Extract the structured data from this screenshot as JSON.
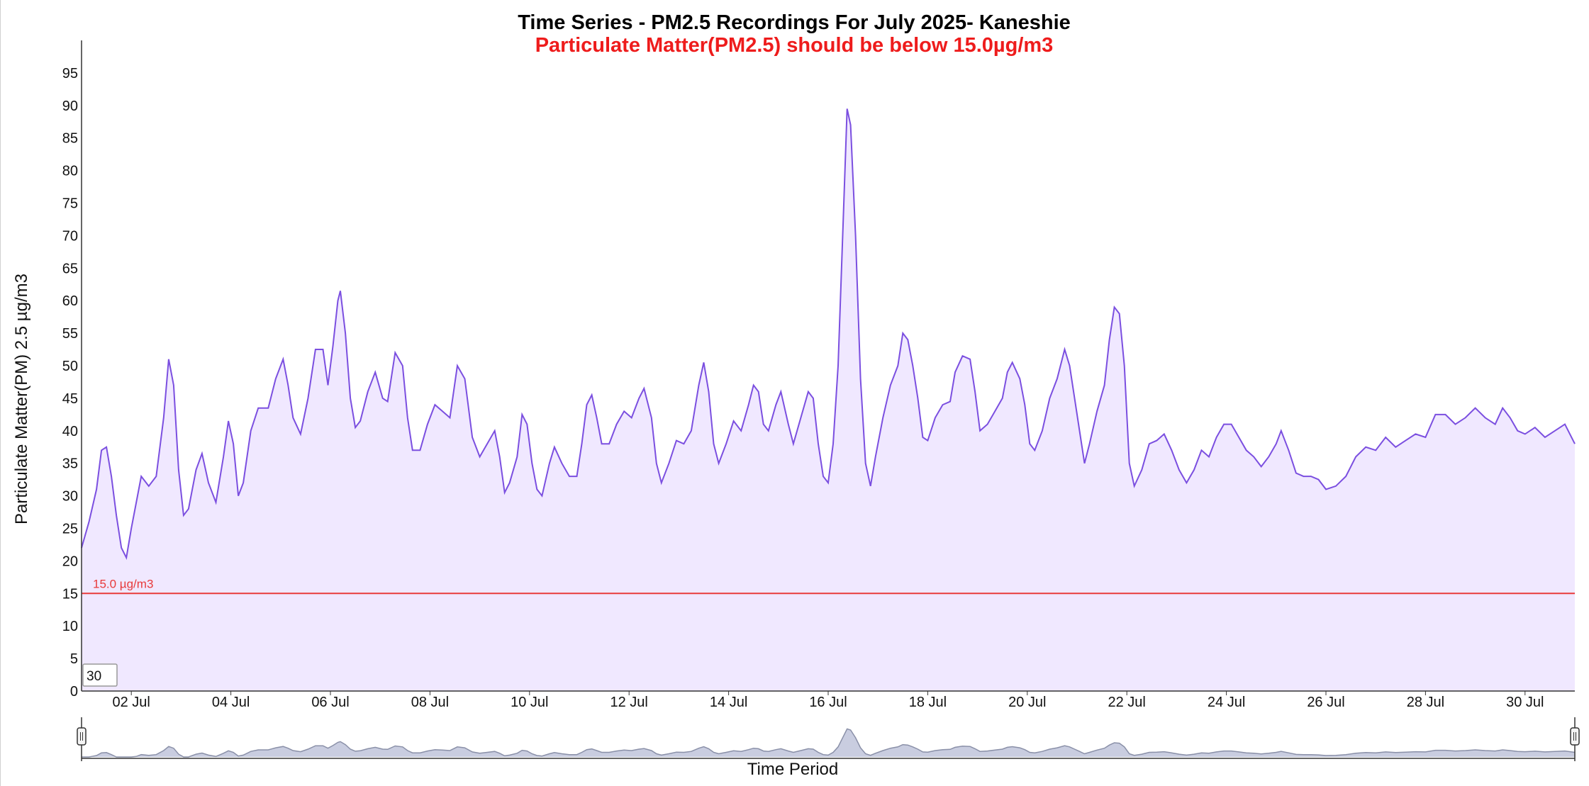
{
  "chart_data": {
    "type": "area",
    "title": "Time Series - PM2.5 Recordings For July 2025- Kaneshie",
    "subtitle": "Particulate Matter(PM2.5) should be below 15.0µg/m3",
    "xlabel": "Time Period",
    "ylabel": "Particulate Matter(PM) 2.5 µg/m3",
    "ylim": [
      0,
      100
    ],
    "xlim": [
      1.0,
      31.0
    ],
    "y_ticks": [
      0,
      5,
      10,
      15,
      20,
      25,
      30,
      35,
      40,
      45,
      50,
      55,
      60,
      65,
      70,
      75,
      80,
      85,
      90,
      95
    ],
    "x_ticks": [
      {
        "day": 2,
        "label": "02 Jul"
      },
      {
        "day": 4,
        "label": "04 Jul"
      },
      {
        "day": 6,
        "label": "06 Jul"
      },
      {
        "day": 8,
        "label": "08 Jul"
      },
      {
        "day": 10,
        "label": "10 Jul"
      },
      {
        "day": 12,
        "label": "12 Jul"
      },
      {
        "day": 14,
        "label": "14 Jul"
      },
      {
        "day": 16,
        "label": "16 Jul"
      },
      {
        "day": 18,
        "label": "18 Jul"
      },
      {
        "day": 20,
        "label": "20 Jul"
      },
      {
        "day": 22,
        "label": "22 Jul"
      },
      {
        "day": 24,
        "label": "24 Jul"
      },
      {
        "day": 26,
        "label": "26 Jul"
      },
      {
        "day": 28,
        "label": "28 Jul"
      },
      {
        "day": 30,
        "label": "30 Jul"
      }
    ],
    "threshold": {
      "value": 15.0,
      "label": "15.0 µg/m3",
      "color": "#e83a3a"
    },
    "series_color": "#7b4fe0",
    "fill_color": "#f0e8ff",
    "grid": false,
    "series": [
      {
        "points": [
          [
            1.0,
            22
          ],
          [
            1.15,
            26
          ],
          [
            1.3,
            31
          ],
          [
            1.4,
            37
          ],
          [
            1.5,
            37.5
          ],
          [
            1.6,
            33
          ],
          [
            1.7,
            27
          ],
          [
            1.8,
            22
          ],
          [
            1.9,
            20.5
          ],
          [
            2.0,
            25
          ],
          [
            2.1,
            29
          ],
          [
            2.2,
            33
          ],
          [
            2.35,
            31.5
          ],
          [
            2.5,
            33
          ],
          [
            2.65,
            42
          ],
          [
            2.75,
            51
          ],
          [
            2.85,
            47
          ],
          [
            2.95,
            34
          ],
          [
            3.05,
            27
          ],
          [
            3.15,
            28
          ],
          [
            3.3,
            34
          ],
          [
            3.42,
            36.5
          ],
          [
            3.55,
            32
          ],
          [
            3.7,
            29
          ],
          [
            3.85,
            36
          ],
          [
            3.95,
            41.5
          ],
          [
            4.05,
            38
          ],
          [
            4.15,
            30
          ],
          [
            4.25,
            32
          ],
          [
            4.4,
            40
          ],
          [
            4.55,
            43.5
          ],
          [
            4.75,
            43.5
          ],
          [
            4.9,
            48
          ],
          [
            5.05,
            51
          ],
          [
            5.15,
            47
          ],
          [
            5.25,
            42
          ],
          [
            5.4,
            39.5
          ],
          [
            5.55,
            45
          ],
          [
            5.7,
            52.5
          ],
          [
            5.85,
            52.5
          ],
          [
            5.95,
            47
          ],
          [
            6.05,
            53
          ],
          [
            6.15,
            60
          ],
          [
            6.2,
            61.5
          ],
          [
            6.3,
            55
          ],
          [
            6.4,
            45
          ],
          [
            6.5,
            40.5
          ],
          [
            6.6,
            41.5
          ],
          [
            6.75,
            46
          ],
          [
            6.9,
            49
          ],
          [
            7.05,
            45
          ],
          [
            7.15,
            44.5
          ],
          [
            7.3,
            52
          ],
          [
            7.45,
            50
          ],
          [
            7.55,
            42
          ],
          [
            7.65,
            37
          ],
          [
            7.8,
            37
          ],
          [
            7.95,
            41
          ],
          [
            8.1,
            44
          ],
          [
            8.25,
            43
          ],
          [
            8.4,
            42
          ],
          [
            8.55,
            50
          ],
          [
            8.7,
            48
          ],
          [
            8.85,
            39
          ],
          [
            9.0,
            36
          ],
          [
            9.15,
            38
          ],
          [
            9.3,
            40
          ],
          [
            9.4,
            36
          ],
          [
            9.5,
            30.5
          ],
          [
            9.6,
            32
          ],
          [
            9.75,
            36
          ],
          [
            9.85,
            42.5
          ],
          [
            9.95,
            41
          ],
          [
            10.05,
            35
          ],
          [
            10.15,
            31
          ],
          [
            10.25,
            30
          ],
          [
            10.4,
            35
          ],
          [
            10.5,
            37.5
          ],
          [
            10.65,
            35
          ],
          [
            10.8,
            33
          ],
          [
            10.95,
            33
          ],
          [
            11.05,
            38
          ],
          [
            11.15,
            44
          ],
          [
            11.25,
            45.5
          ],
          [
            11.35,
            42
          ],
          [
            11.45,
            38
          ],
          [
            11.6,
            38
          ],
          [
            11.75,
            41
          ],
          [
            11.9,
            43
          ],
          [
            12.05,
            42
          ],
          [
            12.2,
            45
          ],
          [
            12.3,
            46.5
          ],
          [
            12.45,
            42
          ],
          [
            12.55,
            35
          ],
          [
            12.65,
            32
          ],
          [
            12.8,
            35
          ],
          [
            12.95,
            38.5
          ],
          [
            13.1,
            38
          ],
          [
            13.25,
            40
          ],
          [
            13.4,
            47
          ],
          [
            13.5,
            50.5
          ],
          [
            13.6,
            46
          ],
          [
            13.7,
            38
          ],
          [
            13.8,
            35
          ],
          [
            13.95,
            38
          ],
          [
            14.1,
            41.5
          ],
          [
            14.25,
            40
          ],
          [
            14.4,
            44
          ],
          [
            14.5,
            47
          ],
          [
            14.6,
            46
          ],
          [
            14.7,
            41
          ],
          [
            14.8,
            40
          ],
          [
            14.95,
            44
          ],
          [
            15.05,
            46
          ],
          [
            15.2,
            41
          ],
          [
            15.3,
            38
          ],
          [
            15.45,
            42
          ],
          [
            15.6,
            46
          ],
          [
            15.7,
            45
          ],
          [
            15.8,
            38
          ],
          [
            15.9,
            33
          ],
          [
            16.0,
            32
          ],
          [
            16.1,
            38
          ],
          [
            16.2,
            50
          ],
          [
            16.3,
            72
          ],
          [
            16.38,
            89.5
          ],
          [
            16.45,
            87
          ],
          [
            16.55,
            70
          ],
          [
            16.65,
            48
          ],
          [
            16.75,
            35
          ],
          [
            16.85,
            31.5
          ],
          [
            16.95,
            36
          ],
          [
            17.1,
            42
          ],
          [
            17.25,
            47
          ],
          [
            17.4,
            50
          ],
          [
            17.5,
            55
          ],
          [
            17.6,
            54
          ],
          [
            17.7,
            50
          ],
          [
            17.8,
            45
          ],
          [
            17.9,
            39
          ],
          [
            18.0,
            38.5
          ],
          [
            18.15,
            42
          ],
          [
            18.3,
            44
          ],
          [
            18.45,
            44.5
          ],
          [
            18.55,
            49
          ],
          [
            18.7,
            51.5
          ],
          [
            18.85,
            51
          ],
          [
            18.95,
            46
          ],
          [
            19.05,
            40
          ],
          [
            19.2,
            41
          ],
          [
            19.35,
            43
          ],
          [
            19.5,
            45
          ],
          [
            19.6,
            49
          ],
          [
            19.7,
            50.5
          ],
          [
            19.85,
            48
          ],
          [
            19.95,
            44
          ],
          [
            20.05,
            38
          ],
          [
            20.15,
            37
          ],
          [
            20.3,
            40
          ],
          [
            20.45,
            45
          ],
          [
            20.6,
            48
          ],
          [
            20.75,
            52.5
          ],
          [
            20.85,
            50
          ],
          [
            20.95,
            45
          ],
          [
            21.05,
            40
          ],
          [
            21.15,
            35
          ],
          [
            21.25,
            38
          ],
          [
            21.4,
            43
          ],
          [
            21.55,
            47
          ],
          [
            21.65,
            54
          ],
          [
            21.75,
            59
          ],
          [
            21.85,
            58
          ],
          [
            21.95,
            50
          ],
          [
            22.05,
            35
          ],
          [
            22.15,
            31.5
          ],
          [
            22.3,
            34
          ],
          [
            22.45,
            38
          ],
          [
            22.6,
            38.5
          ],
          [
            22.75,
            39.5
          ],
          [
            22.9,
            37
          ],
          [
            23.05,
            34
          ],
          [
            23.2,
            32
          ],
          [
            23.35,
            34
          ],
          [
            23.5,
            37
          ],
          [
            23.65,
            36
          ],
          [
            23.8,
            39
          ],
          [
            23.95,
            41
          ],
          [
            24.1,
            41
          ],
          [
            24.25,
            39
          ],
          [
            24.4,
            37
          ],
          [
            24.55,
            36
          ],
          [
            24.7,
            34.5
          ],
          [
            24.85,
            36
          ],
          [
            25.0,
            38
          ],
          [
            25.1,
            40
          ],
          [
            25.25,
            37
          ],
          [
            25.4,
            33.5
          ],
          [
            25.55,
            33
          ],
          [
            25.7,
            33
          ],
          [
            25.85,
            32.5
          ],
          [
            26.0,
            31
          ],
          [
            26.2,
            31.5
          ],
          [
            26.4,
            33
          ],
          [
            26.6,
            36
          ],
          [
            26.8,
            37.5
          ],
          [
            27.0,
            37
          ],
          [
            27.2,
            39
          ],
          [
            27.4,
            37.5
          ],
          [
            27.6,
            38.5
          ],
          [
            27.8,
            39.5
          ],
          [
            28.0,
            39
          ],
          [
            28.2,
            42.5
          ],
          [
            28.4,
            42.5
          ],
          [
            28.6,
            41
          ],
          [
            28.8,
            42
          ],
          [
            29.0,
            43.5
          ],
          [
            29.2,
            42
          ],
          [
            29.4,
            41
          ],
          [
            29.55,
            43.5
          ],
          [
            29.7,
            42
          ],
          [
            29.85,
            40
          ],
          [
            30.0,
            39.5
          ],
          [
            30.2,
            40.5
          ],
          [
            30.4,
            39
          ],
          [
            30.6,
            40
          ],
          [
            30.8,
            41
          ],
          [
            31.0,
            38
          ]
        ]
      }
    ]
  },
  "navigator": {
    "input_value": "30"
  }
}
